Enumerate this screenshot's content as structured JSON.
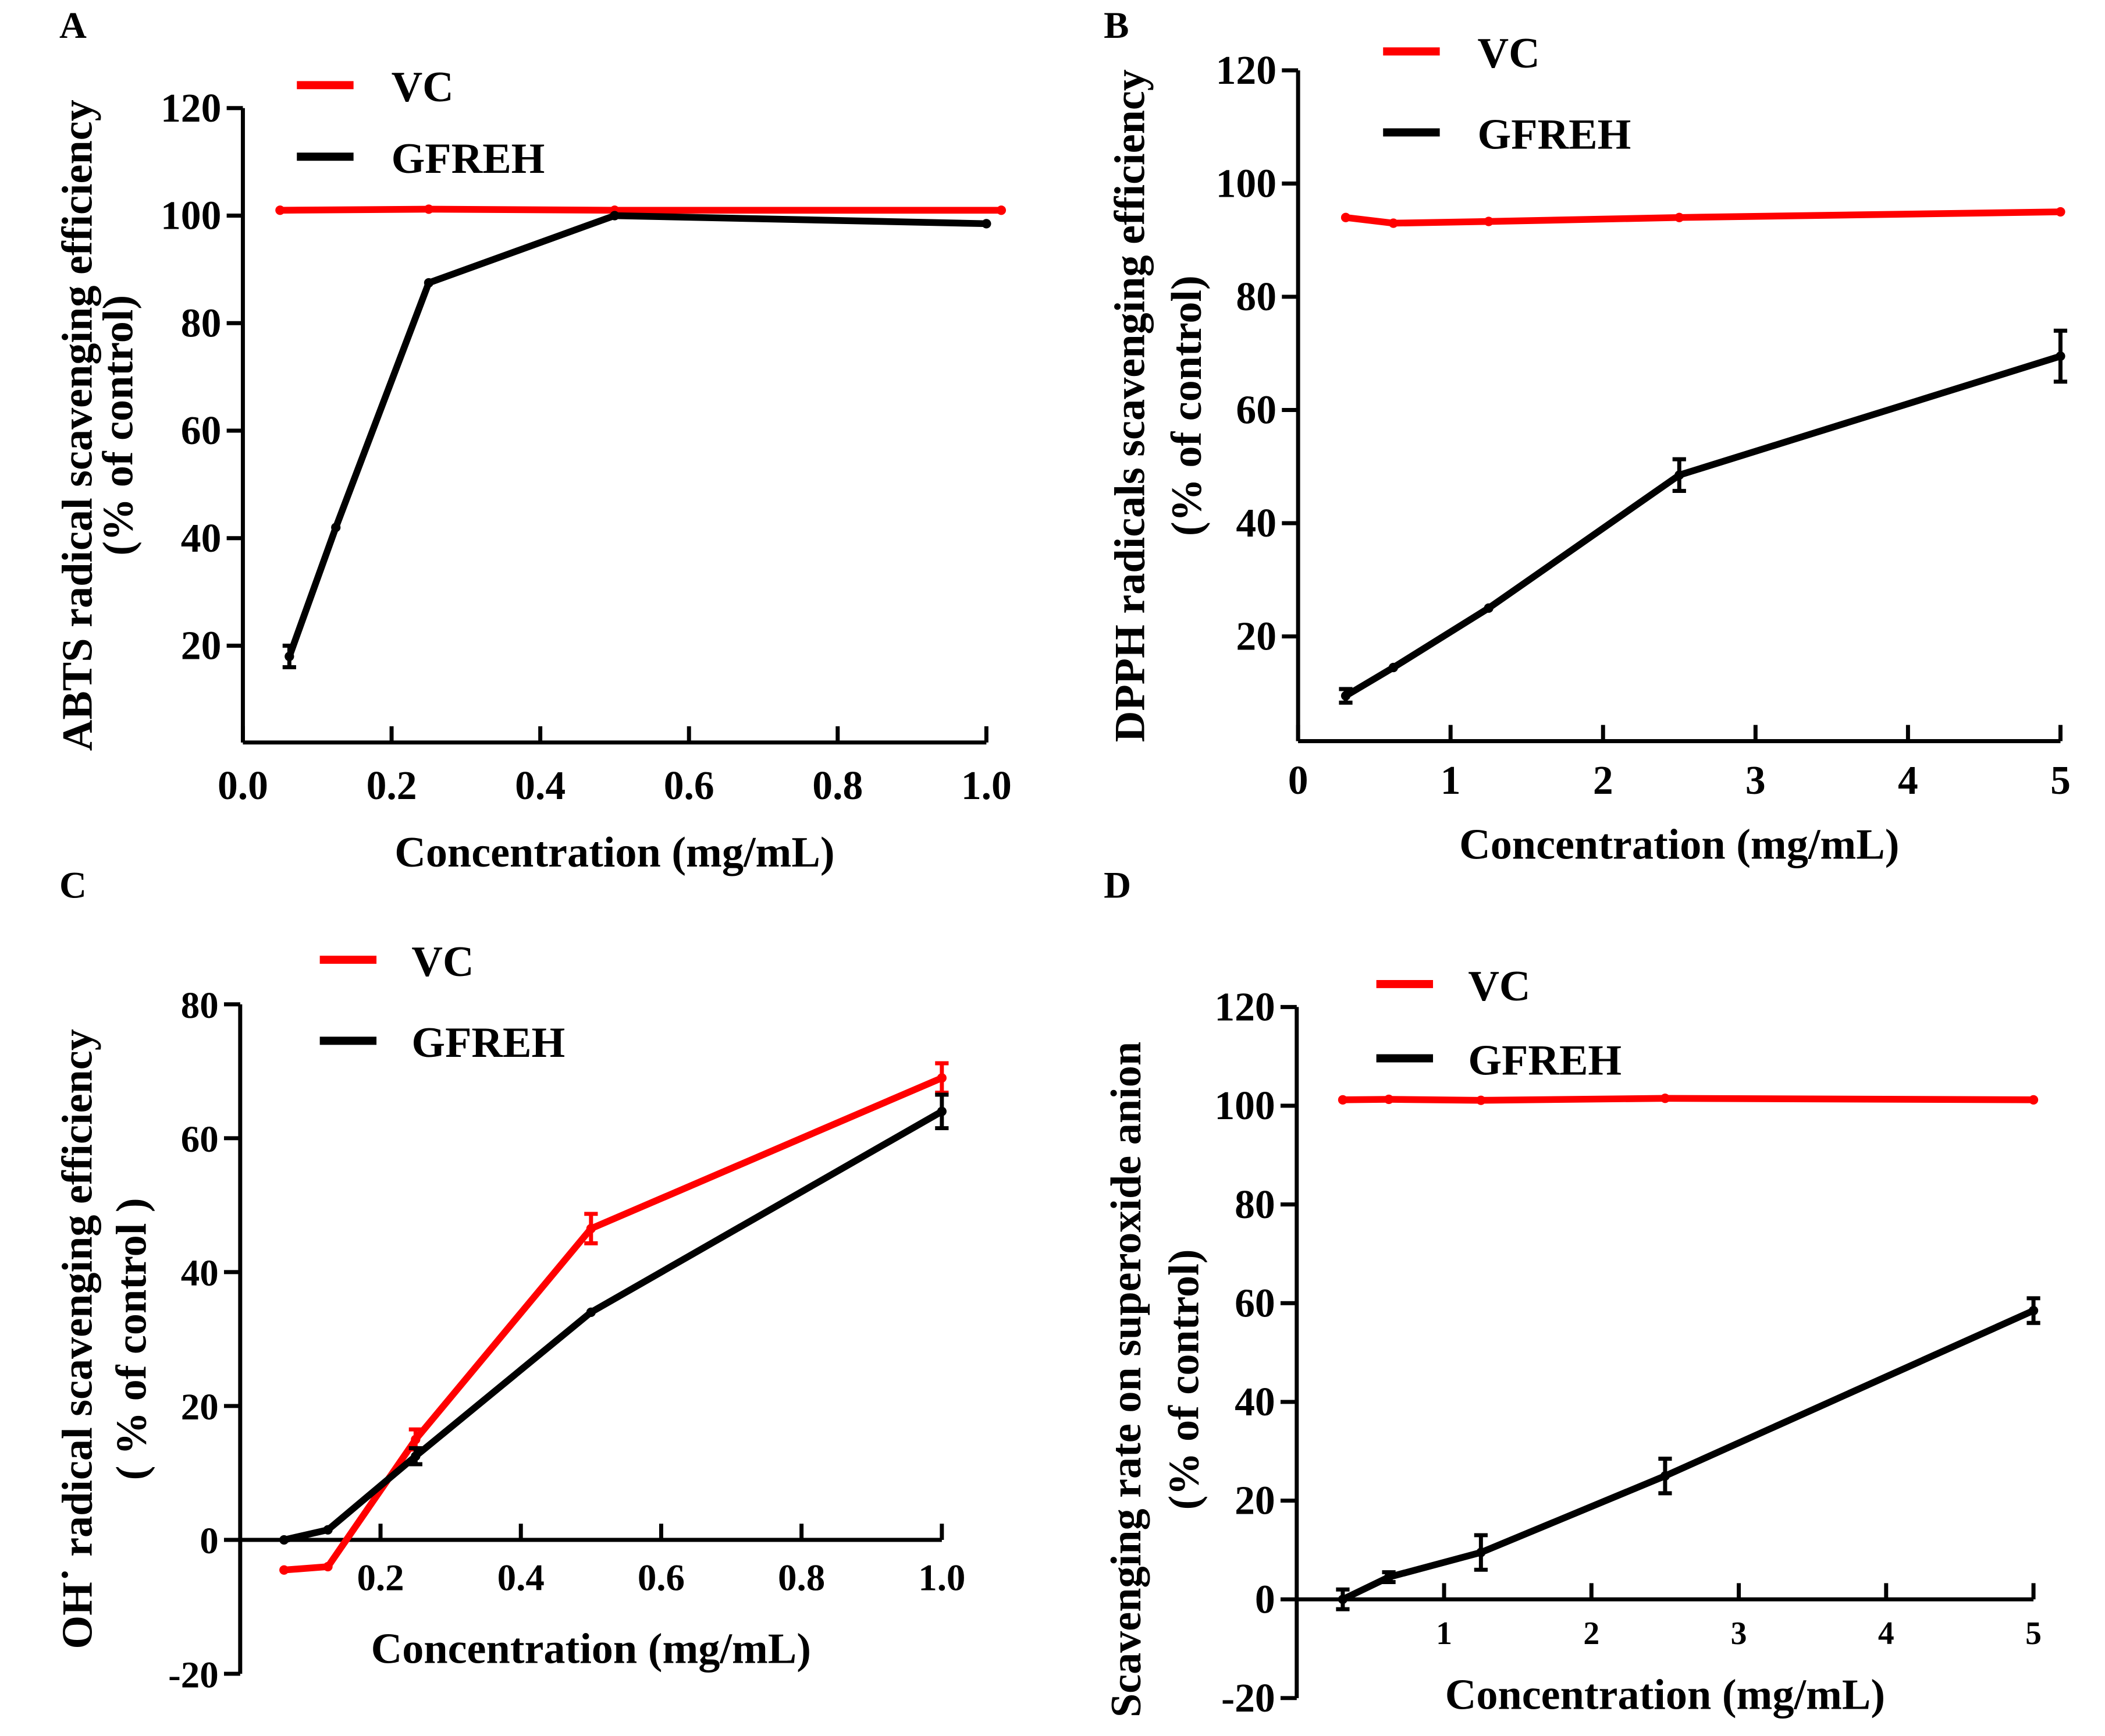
{
  "colors": {
    "VC": "#ff0000",
    "GFREH": "#000000"
  },
  "chart_data": [
    {
      "panel": "A",
      "type": "line",
      "xlabel": "Concentration (mg/mL)",
      "ylabel": [
        "ABTS radical scavenging efficiency",
        "(% of control)"
      ],
      "xlim": [
        0,
        1.0
      ],
      "ylim": [
        2,
        120
      ],
      "xticks": [
        0.0,
        0.2,
        0.4,
        0.6,
        0.8,
        1.0
      ],
      "xtick_labels": [
        "0.0",
        "0.2",
        "0.4",
        "0.6",
        "0.8",
        "1.0"
      ],
      "yticks": [
        20,
        40,
        60,
        80,
        100,
        120
      ],
      "ytick_labels": [
        "20",
        "40",
        "60",
        "80",
        "100",
        "120"
      ],
      "legend": [
        "VC",
        "GFREH"
      ],
      "series": [
        {
          "name": "VC",
          "x": [
            0.05,
            0.25,
            0.5,
            1.02
          ],
          "y": [
            101,
            101.2,
            101,
            101
          ],
          "err": [
            0,
            0,
            0,
            0
          ]
        },
        {
          "name": "GFREH",
          "x": [
            0.0625,
            0.125,
            0.25,
            0.5,
            1.0
          ],
          "y": [
            18,
            42,
            87.5,
            100,
            98.5
          ],
          "err": [
            2,
            0.5,
            0.5,
            0.5,
            0.5
          ]
        }
      ]
    },
    {
      "panel": "B",
      "type": "line",
      "xlabel": "Concentration (mg/mL)",
      "ylabel": [
        "DPPH radicals scavenging efficiency",
        "(% of control)"
      ],
      "xlim": [
        0,
        5
      ],
      "ylim": [
        1.5,
        120
      ],
      "xticks": [
        0,
        1,
        2,
        3,
        4,
        5
      ],
      "xtick_labels": [
        "0",
        "1",
        "2",
        "3",
        "4",
        "5"
      ],
      "yticks": [
        20,
        40,
        60,
        80,
        100,
        120
      ],
      "ytick_labels": [
        "20",
        "40",
        "60",
        "80",
        "100",
        "120"
      ],
      "legend": [
        "VC",
        "GFREH"
      ],
      "series": [
        {
          "name": "VC",
          "x": [
            0.3125,
            0.625,
            1.25,
            2.5,
            5
          ],
          "y": [
            94,
            93,
            93.3,
            94,
            95
          ],
          "err": [
            0.3,
            0.3,
            0.3,
            0.3,
            0.3
          ]
        },
        {
          "name": "GFREH",
          "x": [
            0.3125,
            0.625,
            1.25,
            2.5,
            5
          ],
          "y": [
            9.5,
            14.5,
            25,
            48.5,
            69.5
          ],
          "err": [
            1.2,
            0.5,
            0.5,
            2.8,
            4.5
          ]
        }
      ]
    },
    {
      "panel": "C",
      "type": "line",
      "xlabel": "Concentration (mg/mL)",
      "ylabel": [
        "OH˙ radical scavenging efficiency",
        "( % of control )"
      ],
      "xlim": [
        0,
        1.0
      ],
      "ylim": [
        -20,
        80
      ],
      "xticks": [
        0.2,
        0.4,
        0.6,
        0.8,
        1.0
      ],
      "xtick_labels": [
        "0.2",
        "0.4",
        "0.6",
        "0.8",
        "1.0"
      ],
      "yticks": [
        -20,
        0,
        20,
        40,
        60,
        80
      ],
      "ytick_labels": [
        "-20",
        "0",
        "20",
        "40",
        "60",
        "80"
      ],
      "legend": [
        "VC",
        "GFREH"
      ],
      "series": [
        {
          "name": "VC",
          "x": [
            0.0625,
            0.125,
            0.25,
            0.5,
            1.0
          ],
          "y": [
            -4.5,
            -4,
            15,
            46.5,
            69
          ],
          "err": [
            0.3,
            0.3,
            1.5,
            2.2,
            2.2
          ]
        },
        {
          "name": "GFREH",
          "x": [
            0.0625,
            0.125,
            0.25,
            0.5,
            1.0
          ],
          "y": [
            0,
            1.5,
            12.5,
            34,
            64
          ],
          "err": [
            0.3,
            0.3,
            1.2,
            0.5,
            2.5
          ]
        }
      ]
    },
    {
      "panel": "D",
      "type": "line",
      "xlabel": "Concentration (mg/mL)",
      "ylabel": [
        "Scavenging rate on superoxide anion",
        "(% of control)"
      ],
      "xlim": [
        0,
        5
      ],
      "ylim": [
        -20,
        120
      ],
      "xticks": [
        1,
        2,
        3,
        4,
        5
      ],
      "xtick_labels": [
        "1",
        "2",
        "3",
        "4",
        "5"
      ],
      "yticks": [
        -20,
        0,
        20,
        40,
        60,
        80,
        100,
        120
      ],
      "ytick_labels": [
        "-20",
        "0",
        "20",
        "40",
        "60",
        "80",
        "100",
        "120"
      ],
      "legend": [
        "VC",
        "GFREH"
      ],
      "series": [
        {
          "name": "VC",
          "x": [
            0.3125,
            0.625,
            1.25,
            2.5,
            5
          ],
          "y": [
            101.2,
            101.3,
            101.1,
            101.5,
            101.2
          ],
          "err": [
            0.3,
            0.3,
            0.3,
            0.3,
            0.3
          ]
        },
        {
          "name": "GFREH",
          "x": [
            0.3125,
            0.625,
            1.25,
            2.5,
            5
          ],
          "y": [
            0,
            4.5,
            9.5,
            25,
            58.5
          ],
          "err": [
            2,
            1,
            3.5,
            3.5,
            2.5
          ]
        }
      ]
    }
  ]
}
